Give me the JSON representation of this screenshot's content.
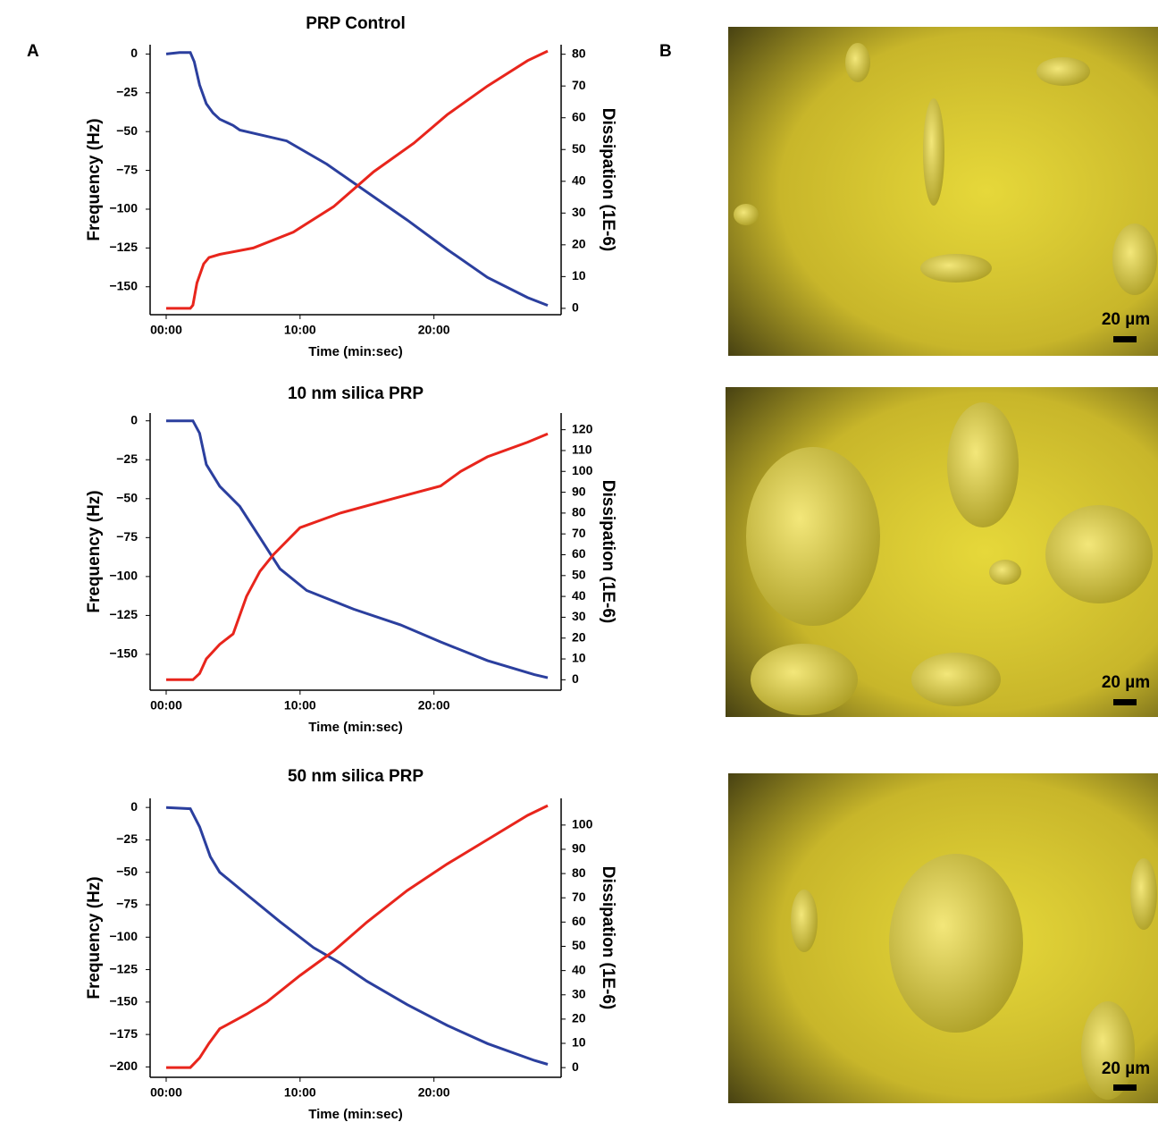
{
  "panel_labels": [
    "A",
    "B"
  ],
  "scale_bar_labels": [
    "20 µm",
    "20 µm",
    "20 µm"
  ],
  "chart_data": [
    {
      "type": "line",
      "title": "PRP Control",
      "x_label": "Time (min:sec)",
      "y_label": "Frequency (Hz)",
      "y2_label": "Dissipation (1E-6)",
      "xlim": [
        -1.2,
        29.5
      ],
      "xticks": [
        {
          "value": 0,
          "label": "00:00"
        },
        {
          "value": 10,
          "label": "10:00"
        },
        {
          "value": 20,
          "label": "20:00"
        }
      ],
      "ylim": [
        -168,
        6
      ],
      "yticks": [
        0,
        {
          "value": -25,
          "label": "−25"
        },
        {
          "value": -50,
          "label": "−50"
        },
        {
          "value": -75,
          "label": "−75"
        },
        {
          "value": -100,
          "label": "−100"
        },
        {
          "value": -125,
          "label": "−125"
        },
        {
          "value": -150,
          "label": "−150"
        }
      ],
      "y2lim": [
        -2,
        83
      ],
      "y2ticks": [
        0,
        10,
        20,
        30,
        40,
        50,
        60,
        70,
        80
      ],
      "series": [
        {
          "color": "#2b3f9e",
          "axis": "y",
          "x": [
            0,
            1,
            1.8,
            2.1,
            2.5,
            3,
            3.5,
            4,
            5,
            5.5,
            7,
            9,
            12,
            15,
            18,
            21,
            24,
            27,
            28.5
          ],
          "values": [
            0,
            1,
            1,
            -5,
            -20,
            -32,
            -38,
            -42,
            -46,
            -49,
            -52,
            -56,
            -71,
            -89,
            -107,
            -126,
            -144,
            -157,
            -162
          ]
        },
        {
          "color": "#e8251c",
          "axis": "y2",
          "x": [
            0,
            1.8,
            2,
            2.3,
            2.8,
            3.2,
            4,
            6.5,
            9.5,
            12.5,
            15.5,
            18.5,
            21,
            24,
            27,
            28.5
          ],
          "values": [
            0,
            0,
            1,
            8,
            14,
            16,
            17,
            19,
            24,
            32,
            43,
            52,
            61,
            70,
            78,
            81
          ]
        }
      ]
    },
    {
      "type": "line",
      "title": "10 nm silica PRP",
      "x_label": "Time (min:sec)",
      "y_label": "Frequency (Hz)",
      "y2_label": "Dissipation (1E-6)",
      "xlim": [
        -1.2,
        29.5
      ],
      "xticks": [
        {
          "value": 0,
          "label": "00:00"
        },
        {
          "value": 10,
          "label": "10:00"
        },
        {
          "value": 20,
          "label": "20:00"
        }
      ],
      "ylim": [
        -173,
        5
      ],
      "yticks": [
        0,
        {
          "value": -25,
          "label": "−25"
        },
        {
          "value": -50,
          "label": "−50"
        },
        {
          "value": -75,
          "label": "−75"
        },
        {
          "value": -100,
          "label": "−100"
        },
        {
          "value": -125,
          "label": "−125"
        },
        {
          "value": -150,
          "label": "−150"
        }
      ],
      "y2lim": [
        -5,
        128
      ],
      "y2ticks": [
        0,
        10,
        20,
        30,
        40,
        50,
        60,
        70,
        80,
        90,
        100,
        110,
        120
      ],
      "series": [
        {
          "color": "#2b3f9e",
          "axis": "y",
          "x": [
            0,
            2,
            2.5,
            3,
            4,
            5.5,
            7,
            8.5,
            10.5,
            14,
            17.5,
            20.5,
            24,
            27.5,
            28.5
          ],
          "values": [
            0,
            0,
            -8,
            -28,
            -42,
            -55,
            -75,
            -95,
            -109,
            -121,
            -131,
            -142,
            -154,
            -163,
            -165
          ]
        },
        {
          "color": "#e8251c",
          "axis": "y2",
          "x": [
            0,
            2,
            2.5,
            3,
            4,
            5,
            6,
            7,
            8,
            10,
            13,
            17,
            20.5,
            22,
            24,
            27,
            28.5
          ],
          "values": [
            0,
            0,
            3,
            10,
            17,
            22,
            40,
            52,
            60,
            73,
            80,
            87,
            93,
            100,
            107,
            114,
            118
          ]
        }
      ]
    },
    {
      "type": "line",
      "title": "50 nm silica PRP",
      "x_label": "Time (min:sec)",
      "y_label": "Frequency (Hz)",
      "y2_label": "Dissipation (1E-6)",
      "xlim": [
        -1.2,
        29.5
      ],
      "xticks": [
        {
          "value": 0,
          "label": "00:00"
        },
        {
          "value": 10,
          "label": "10:00"
        },
        {
          "value": 20,
          "label": "20:00"
        }
      ],
      "ylim": [
        -208,
        7
      ],
      "yticks": [
        0,
        {
          "value": -25,
          "label": "−25"
        },
        {
          "value": -50,
          "label": "−50"
        },
        {
          "value": -75,
          "label": "−75"
        },
        {
          "value": -100,
          "label": "−100"
        },
        {
          "value": -125,
          "label": "−125"
        },
        {
          "value": -150,
          "label": "−150"
        },
        {
          "value": -175,
          "label": "−175"
        },
        {
          "value": -200,
          "label": "−200"
        }
      ],
      "y2lim": [
        -4,
        111
      ],
      "y2ticks": [
        0,
        10,
        20,
        30,
        40,
        50,
        60,
        70,
        80,
        90,
        100
      ],
      "series": [
        {
          "color": "#2b3f9e",
          "axis": "y",
          "x": [
            0,
            1.8,
            2.5,
            3.3,
            4,
            6,
            8.5,
            11,
            13,
            15,
            18,
            21,
            24,
            27.5,
            28.5
          ],
          "values": [
            0,
            -1,
            -15,
            -38,
            -50,
            -67,
            -88,
            -108,
            -120,
            -134,
            -152,
            -168,
            -182,
            -195,
            -198
          ]
        },
        {
          "color": "#e8251c",
          "axis": "y2",
          "x": [
            0,
            1.8,
            2.5,
            3.2,
            4,
            6,
            7.5,
            10,
            12.5,
            15,
            18,
            21,
            24,
            27,
            28.5
          ],
          "values": [
            0,
            0,
            4,
            10,
            16,
            22,
            27,
            38,
            48,
            60,
            73,
            84,
            94,
            104,
            108
          ]
        }
      ]
    }
  ]
}
